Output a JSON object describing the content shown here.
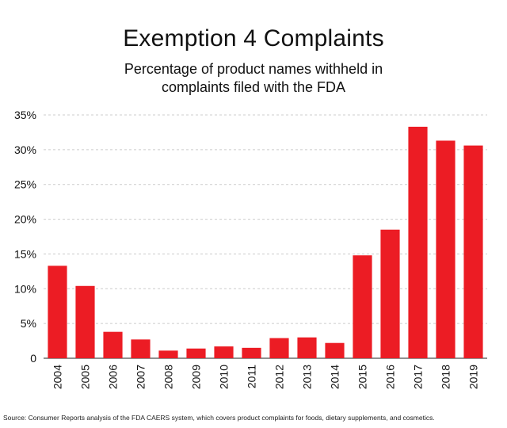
{
  "title": "Exemption 4 Complaints",
  "subtitle": "Percentage of product names withheld in complaints filed with the FDA",
  "source": "Source: Consumer Reports analysis of the FDA CAERS system, which covers product complaints for foods, dietary supplements, and cosmetics.",
  "colors": {
    "bar": "#ec1c24",
    "grid": "#cccccc",
    "text": "#111111"
  },
  "chart_data": {
    "type": "bar",
    "title": "Exemption 4 Complaints",
    "subtitle": "Percentage of product names withheld in complaints filed with the FDA",
    "categories": [
      "2004",
      "2005",
      "2006",
      "2007",
      "2008",
      "2009",
      "2010",
      "2011",
      "2012",
      "2013",
      "2014",
      "2015",
      "2016",
      "2017",
      "2018",
      "2019"
    ],
    "values": [
      13.3,
      10.4,
      3.8,
      2.7,
      1.1,
      1.4,
      1.7,
      1.5,
      2.9,
      3.0,
      2.2,
      14.8,
      18.5,
      33.3,
      31.3,
      30.6
    ],
    "ylim": [
      0,
      35
    ],
    "yticks": [
      0,
      5,
      10,
      15,
      20,
      25,
      30,
      35
    ],
    "ytick_labels": [
      "0",
      "5%",
      "10%",
      "15%",
      "20%",
      "25%",
      "30%",
      "35%"
    ],
    "grid": true,
    "legend": "none"
  }
}
